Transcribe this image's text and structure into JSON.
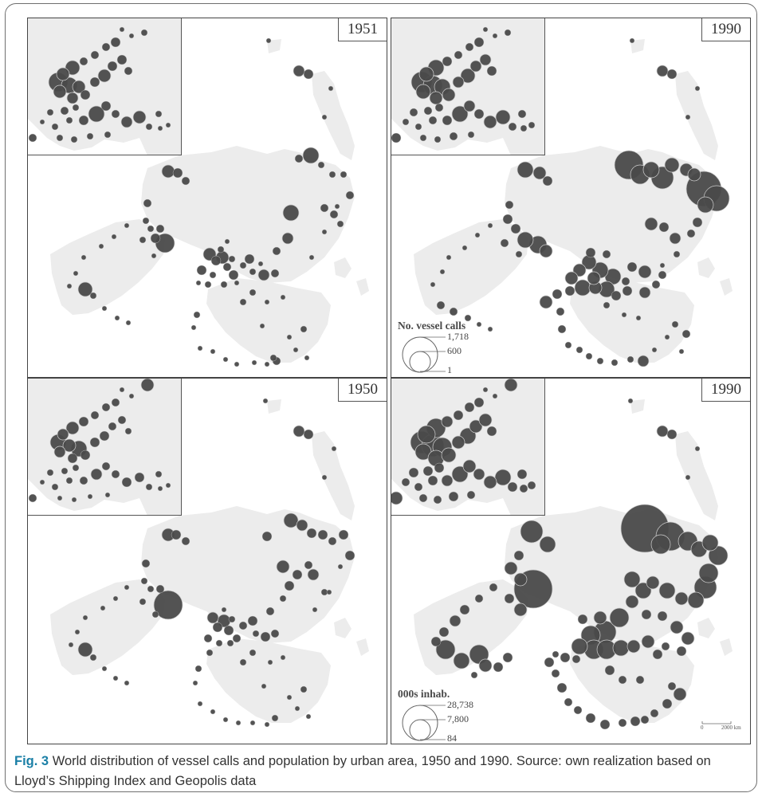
{
  "panels": [
    {
      "id": "p1",
      "year": "1951"
    },
    {
      "id": "p2",
      "year": "1990"
    },
    {
      "id": "p3",
      "year": "1950"
    },
    {
      "id": "p4",
      "year": "1990"
    }
  ],
  "legend_calls": {
    "title": "No. vessel calls",
    "values": [
      "1,718",
      "600",
      "1"
    ]
  },
  "legend_pop": {
    "title": "000s inhab.",
    "values": [
      "28,738",
      "7,800",
      "84"
    ]
  },
  "scale": {
    "label_start": "0",
    "label_end": "2000 km"
  },
  "caption": {
    "fig_label": "Fig. 3",
    "text": "World distribution of vessel calls and population by urban area, 1950 and 1990. Source: own realization based on Lloyd’s Shipping Index and Geopolis data"
  },
  "colors": {
    "land": "#ececec",
    "bubble": "#4a4a4a",
    "bubble_stroke": "#cfcfcf",
    "fig_label": "#1a7fa6"
  }
}
